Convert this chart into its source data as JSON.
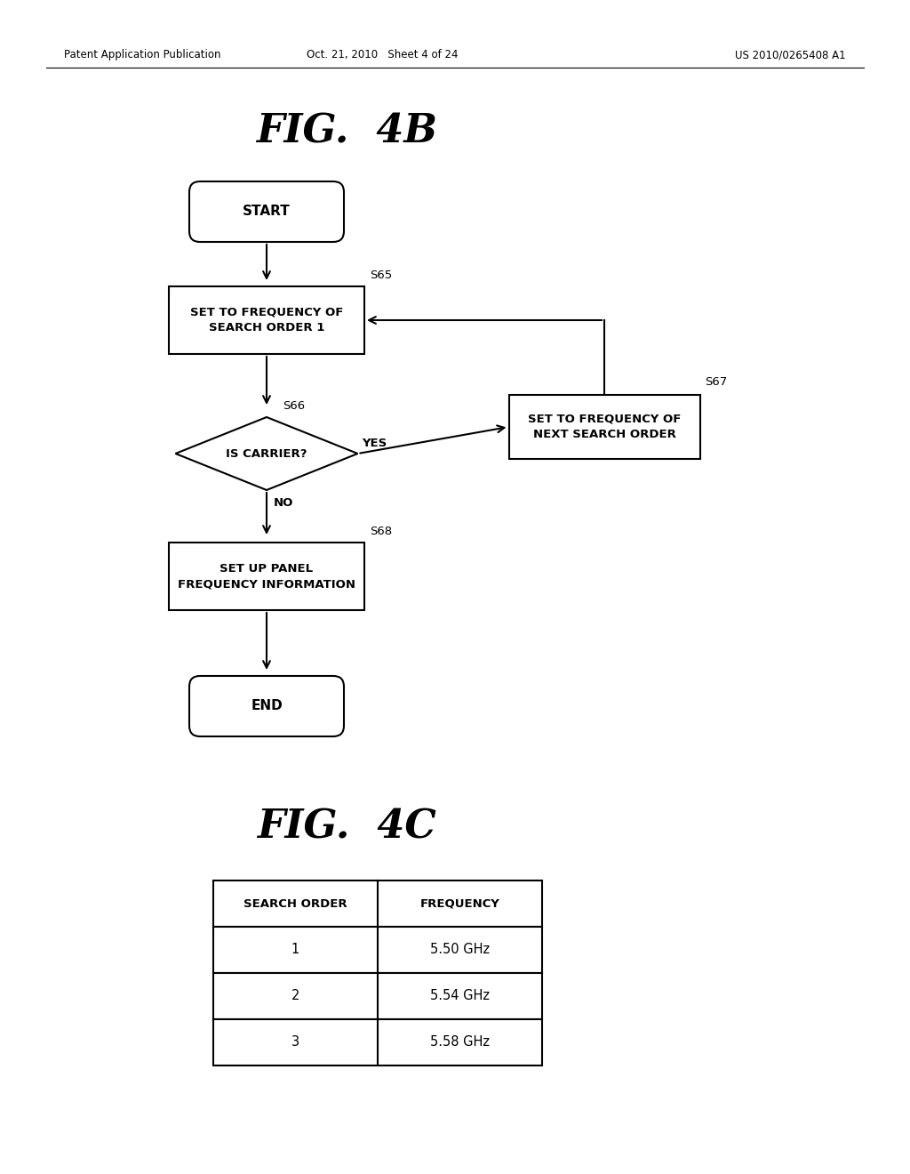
{
  "background_color": "#ffffff",
  "header_left": "Patent Application Publication",
  "header_center": "Oct. 21, 2010   Sheet 4 of 24",
  "header_right": "US 2010/0265408 A1",
  "fig4b_title": "FIG.  4B",
  "fig4c_title": "FIG.  4C",
  "flowchart": {
    "start_text": "START",
    "box1_text": "SET TO FREQUENCY OF\nSEARCH ORDER 1",
    "box1_label": "S65",
    "diamond_text": "IS CARRIER?",
    "diamond_label": "S66",
    "box2_text": "SET TO FREQUENCY OF\nNEXT SEARCH ORDER",
    "box2_label": "S67",
    "box3_text": "SET UP PANEL\nFREQUENCY INFORMATION",
    "box3_label": "S68",
    "end_text": "END",
    "yes_label": "YES",
    "no_label": "NO"
  },
  "table": {
    "headers": [
      "SEARCH ORDER",
      "FREQUENCY"
    ],
    "rows": [
      [
        "1",
        "5.50 GHz"
      ],
      [
        "2",
        "5.54 GHz"
      ],
      [
        "3",
        "5.58 GHz"
      ]
    ]
  }
}
